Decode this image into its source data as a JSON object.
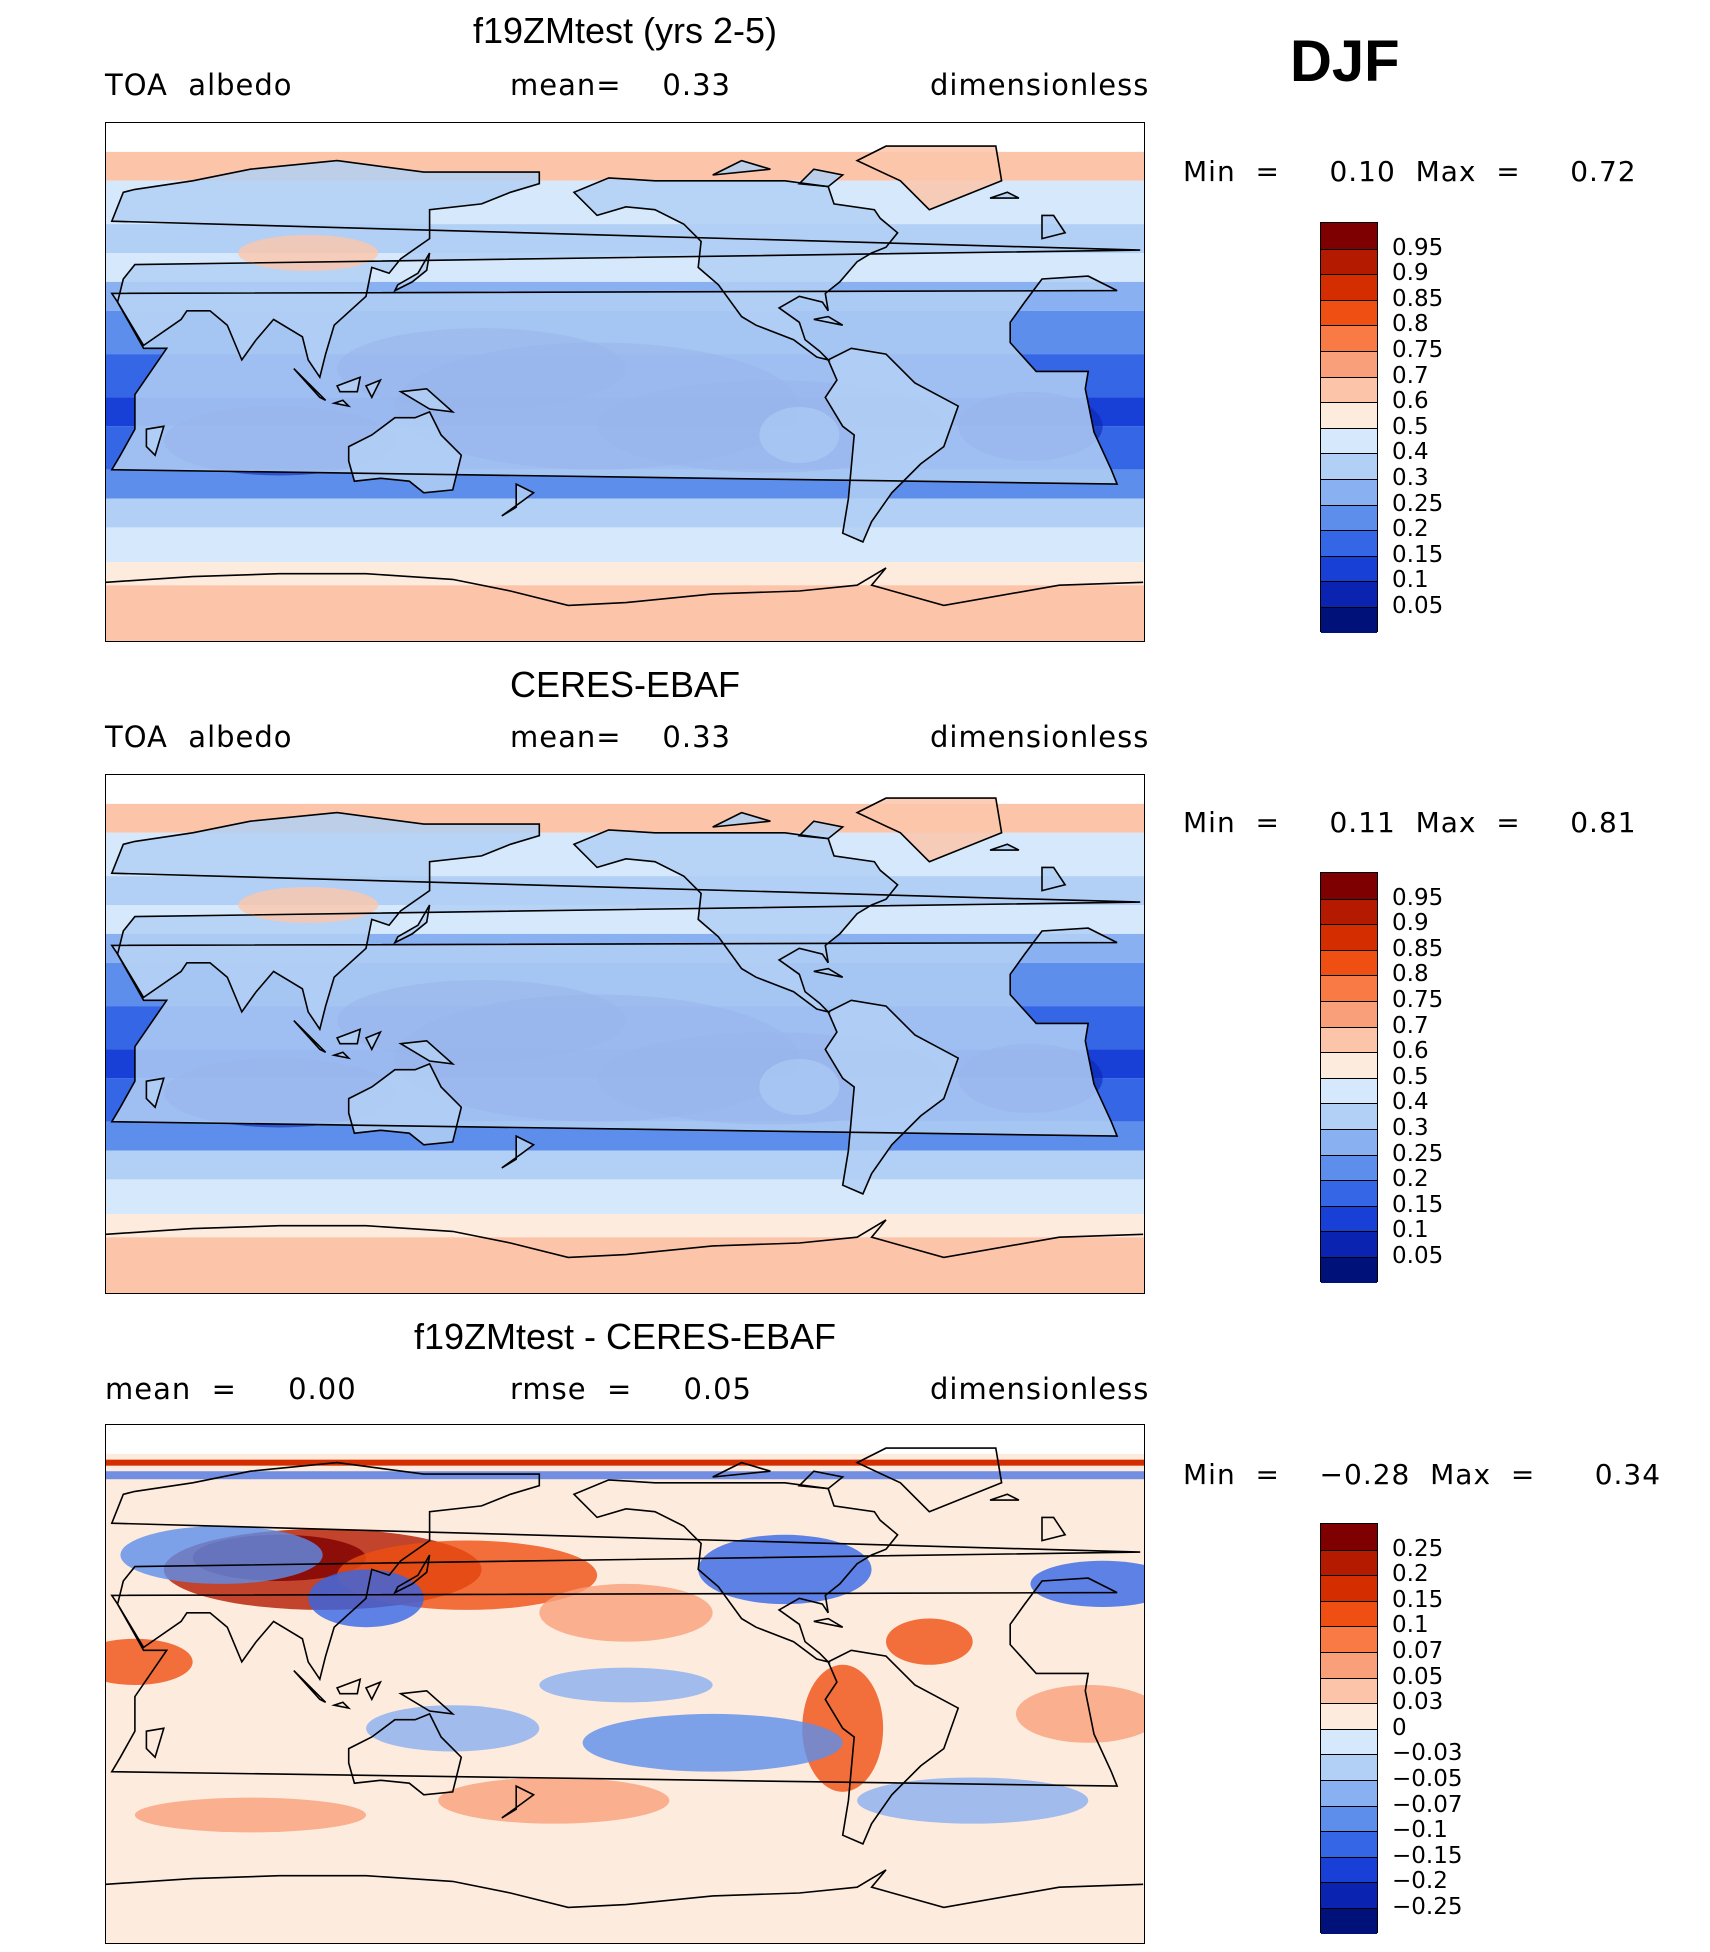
{
  "season": "DJF",
  "panels": [
    {
      "title": "f19ZMtest (yrs 2-5)",
      "left": "TOA  albedo",
      "mid": "mean=    0.33",
      "right": "dimensionless",
      "minmax": "Min  =     0.10  Max  =     0.72",
      "colorbar": {
        "labels": [
          "0.95",
          "0.9",
          "0.85",
          "0.8",
          "0.75",
          "0.7",
          "0.6",
          "0.5",
          "0.4",
          "0.3",
          "0.25",
          "0.2",
          "0.15",
          "0.1",
          "0.05"
        ],
        "colors": [
          "#7f0000",
          "#b31a00",
          "#d42e00",
          "#ef4f12",
          "#f97a45",
          "#f9a07a",
          "#fcc5aa",
          "#fdebdd",
          "#d6e8fb",
          "#b2cff5",
          "#89b0f0",
          "#5d8eeb",
          "#3566e6",
          "#1940d6",
          "#0a23b0",
          "#00127a"
        ]
      }
    },
    {
      "title": "CERES-EBAF",
      "left": "TOA  albedo",
      "mid": "mean=    0.33",
      "right": "dimensionless",
      "minmax": "Min  =     0.11  Max  =     0.81",
      "colorbar": {
        "labels": [
          "0.95",
          "0.9",
          "0.85",
          "0.8",
          "0.75",
          "0.7",
          "0.6",
          "0.5",
          "0.4",
          "0.3",
          "0.25",
          "0.2",
          "0.15",
          "0.1",
          "0.05"
        ],
        "colors": [
          "#7f0000",
          "#b31a00",
          "#d42e00",
          "#ef4f12",
          "#f97a45",
          "#f9a07a",
          "#fcc5aa",
          "#fdebdd",
          "#d6e8fb",
          "#b2cff5",
          "#89b0f0",
          "#5d8eeb",
          "#3566e6",
          "#1940d6",
          "#0a23b0",
          "#00127a"
        ]
      }
    },
    {
      "title": "f19ZMtest - CERES-EBAF",
      "left": "mean  =     0.00",
      "mid": "rmse  =     0.05",
      "right": "dimensionless",
      "minmax": "Min  =    −0.28  Max  =      0.34",
      "colorbar": {
        "labels": [
          "0.25",
          "0.2",
          "0.15",
          "0.1",
          "0.07",
          "0.05",
          "0.03",
          "0",
          "−0.03",
          "−0.05",
          "−0.07",
          "−0.1",
          "−0.15",
          "−0.2",
          "−0.25"
        ],
        "colors": [
          "#7f0000",
          "#b31a00",
          "#d42e00",
          "#ef4f12",
          "#f97a45",
          "#f9a07a",
          "#fcc5aa",
          "#fdebdd",
          "#d6e8fb",
          "#b2cff5",
          "#89b0f0",
          "#5d8eeb",
          "#3566e6",
          "#1940d6",
          "#0a23b0",
          "#00127a"
        ]
      }
    }
  ]
}
